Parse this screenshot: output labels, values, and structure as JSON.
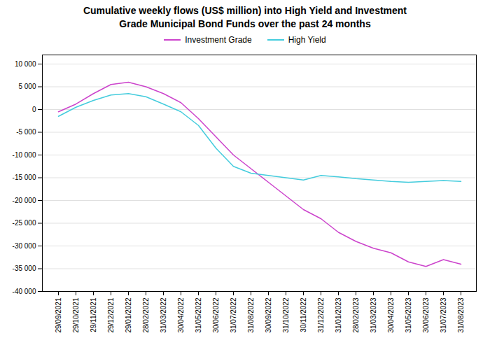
{
  "chart_data": {
    "type": "line",
    "title": "Cumulative weekly flows (US$ million) into High Yield and Investment\nGrade Municipal Bond Funds over the past 24 months",
    "categories": [
      "29/09/2021",
      "29/10/2021",
      "29/11/2021",
      "29/12/2021",
      "29/01/2022",
      "28/02/2022",
      "31/03/2022",
      "30/04/2022",
      "31/05/2022",
      "30/06/2022",
      "31/07/2022",
      "31/08/2022",
      "30/09/2022",
      "31/10/2022",
      "30/11/2022",
      "31/12/2022",
      "31/01/2023",
      "28/02/2023",
      "31/03/2023",
      "30/04/2023",
      "31/05/2023",
      "30/06/2023",
      "31/07/2023",
      "31/08/2023"
    ],
    "series": [
      {
        "name": "Investment Grade",
        "color": "#cc44cc",
        "values": [
          -500,
          1200,
          3500,
          5500,
          6000,
          5000,
          3500,
          1500,
          -2000,
          -6000,
          -10000,
          -13000,
          -16000,
          -19000,
          -22000,
          -24000,
          -27000,
          -29000,
          -30500,
          -31500,
          -33500,
          -34500,
          -33000,
          -34000
        ]
      },
      {
        "name": "High Yield",
        "color": "#44ccdd",
        "values": [
          -1500,
          500,
          2000,
          3200,
          3500,
          2800,
          1200,
          -500,
          -3500,
          -8500,
          -12500,
          -14000,
          -14500,
          -15000,
          -15500,
          -14500,
          -14800,
          -15200,
          -15500,
          -15800,
          -16000,
          -15800,
          -15600,
          -15800
        ]
      }
    ],
    "ylim": [
      -40000,
      12000
    ],
    "yticks": [
      {
        "value": -40000,
        "label": "-40 000"
      },
      {
        "value": -35000,
        "label": "-35 000"
      },
      {
        "value": -30000,
        "label": "-30 000"
      },
      {
        "value": -25000,
        "label": "-25 000"
      },
      {
        "value": -20000,
        "label": "-20 000"
      },
      {
        "value": -15000,
        "label": "-15 000"
      },
      {
        "value": -10000,
        "label": "-10 000"
      },
      {
        "value": -5000,
        "label": "-5 000"
      },
      0,
      {
        "value": 5000,
        "label": "5 000"
      },
      {
        "value": 10000,
        "label": "10 000"
      }
    ],
    "grid": true,
    "legend": "top"
  }
}
